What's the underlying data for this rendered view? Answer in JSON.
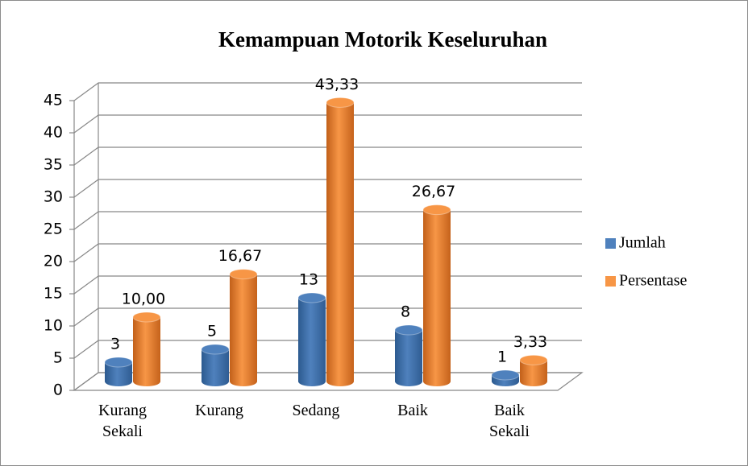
{
  "chart_data": {
    "type": "bar3d",
    "title": "Kemampuan Motorik Keseluruhan",
    "categories": [
      "Kurang Sekali",
      "Kurang",
      "Sedang",
      "Baik",
      "Baik Sekali"
    ],
    "series": [
      {
        "name": "Jumlah",
        "color": "#4f81bd",
        "values": [
          3,
          5,
          13,
          8,
          1
        ]
      },
      {
        "name": "Persentase",
        "color": "#f79646",
        "values": [
          10,
          16.67,
          43.33,
          26.67,
          3.33
        ],
        "value_labels": [
          "10,00",
          "16,67",
          "43,33",
          "26,67",
          "3,33"
        ]
      }
    ],
    "ylim": [
      0,
      45
    ],
    "yticks": [
      0,
      5,
      10,
      15,
      20,
      25,
      30,
      35,
      40,
      45
    ],
    "grid": true,
    "legend": "right"
  }
}
